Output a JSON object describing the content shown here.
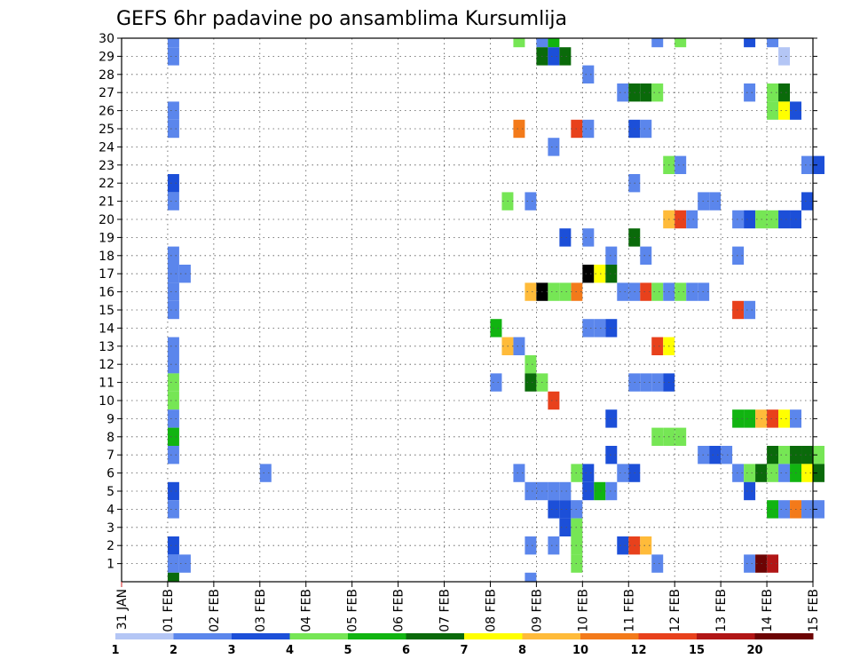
{
  "chart_data": {
    "type": "heatmap",
    "title": "GEFS 6hr padavine po ansamblima Kursumlija",
    "xlabel": "",
    "ylabel": "",
    "x_ticks": [
      "31 JAN",
      "01 FEB",
      "02 FEB",
      "03 FEB",
      "04 FEB",
      "05 FEB",
      "06 FEB",
      "07 FEB",
      "08 FEB",
      "09 FEB",
      "10 FEB",
      "11 FEB",
      "12 FEB",
      "13 FEB",
      "14 FEB",
      "15 FEB"
    ],
    "x_range_days": [
      0,
      15
    ],
    "x_step_days": 0.25,
    "y_range": [
      0,
      30
    ],
    "y_ticks": [
      1,
      2,
      3,
      4,
      5,
      6,
      7,
      8,
      9,
      10,
      11,
      12,
      13,
      14,
      15,
      16,
      17,
      18,
      19,
      20,
      21,
      22,
      23,
      24,
      25,
      26,
      27,
      28,
      29,
      30
    ],
    "grid": "dotted",
    "colorbar": {
      "tick_labels": [
        "1",
        "2",
        "3",
        "4",
        "5",
        "6",
        "7",
        "8",
        "10",
        "12",
        "15",
        "20"
      ],
      "colors": [
        "#b4c6f5",
        "#5b86ec",
        "#1c4fd8",
        "#76e655",
        "#11b411",
        "#0a6a0a",
        "#ffff00",
        "#ffbb3a",
        "#f37a1a",
        "#e8411c",
        "#b11616",
        "#6d0404"
      ]
    },
    "cells": [
      [
        1,
        30,
        1
      ],
      [
        1,
        29,
        1
      ],
      [
        1,
        26,
        1
      ],
      [
        1,
        25,
        1
      ],
      [
        1,
        22,
        2
      ],
      [
        1,
        21,
        1
      ],
      [
        1,
        18,
        1
      ],
      [
        1,
        17,
        1
      ],
      [
        1.25,
        17,
        1
      ],
      [
        1,
        16,
        1
      ],
      [
        1,
        15,
        1
      ],
      [
        1,
        13,
        1
      ],
      [
        1,
        12,
        1
      ],
      [
        1,
        11,
        3
      ],
      [
        1,
        10,
        3
      ],
      [
        1,
        9,
        1
      ],
      [
        1,
        8,
        4
      ],
      [
        1,
        7,
        1
      ],
      [
        1,
        5,
        2
      ],
      [
        1,
        4,
        1
      ],
      [
        1,
        2,
        2
      ],
      [
        1,
        1,
        1
      ],
      [
        1.25,
        1,
        1
      ],
      [
        1,
        0,
        5
      ],
      [
        3,
        6,
        1
      ],
      [
        8.5,
        30,
        3
      ],
      [
        9,
        30,
        1
      ],
      [
        9.25,
        30,
        4
      ],
      [
        9,
        29,
        5
      ],
      [
        9.25,
        29,
        2
      ],
      [
        9.5,
        29,
        5
      ],
      [
        10,
        28,
        1
      ],
      [
        8.5,
        25,
        8
      ],
      [
        9.75,
        25,
        9
      ],
      [
        10,
        25,
        1
      ],
      [
        9.25,
        24,
        1
      ],
      [
        8.25,
        21,
        3
      ],
      [
        8.75,
        21,
        1
      ],
      [
        9.5,
        19,
        2
      ],
      [
        10,
        19,
        1
      ],
      [
        9.75,
        16,
        8
      ],
      [
        8.75,
        16,
        7
      ],
      [
        9,
        16,
        12
      ],
      [
        9.25,
        16,
        3
      ],
      [
        9.5,
        16,
        3
      ],
      [
        10,
        17,
        12
      ],
      [
        10.25,
        17,
        6
      ],
      [
        10.5,
        17,
        5
      ],
      [
        8,
        14,
        4
      ],
      [
        8.25,
        13,
        7
      ],
      [
        8.5,
        13,
        1
      ],
      [
        8.75,
        12,
        3
      ],
      [
        8,
        11,
        1
      ],
      [
        8.75,
        11,
        5
      ],
      [
        9,
        11,
        3
      ],
      [
        9.25,
        10,
        9
      ],
      [
        8.5,
        6,
        1
      ],
      [
        8.75,
        5,
        1
      ],
      [
        9,
        5,
        1
      ],
      [
        9.25,
        5,
        1
      ],
      [
        9.5,
        5,
        1
      ],
      [
        9.25,
        4,
        2
      ],
      [
        9.5,
        4,
        2
      ],
      [
        9.75,
        4,
        1
      ],
      [
        9.5,
        3,
        2
      ],
      [
        9.75,
        3,
        3
      ],
      [
        8.75,
        2,
        1
      ],
      [
        9.25,
        2,
        1
      ],
      [
        9.75,
        2,
        3
      ],
      [
        9.75,
        1,
        3
      ],
      [
        8.75,
        0,
        1
      ],
      [
        9.75,
        6,
        3
      ],
      [
        10,
        6,
        2
      ],
      [
        10,
        5,
        2
      ],
      [
        10.25,
        5,
        4
      ],
      [
        10.5,
        5,
        1
      ],
      [
        10.75,
        27,
        1
      ],
      [
        11,
        27,
        5
      ],
      [
        11.25,
        27,
        5
      ],
      [
        11.5,
        27,
        3
      ],
      [
        11,
        25,
        2
      ],
      [
        11.25,
        25,
        1
      ],
      [
        11,
        22,
        1
      ],
      [
        11,
        19,
        5
      ],
      [
        10.5,
        18,
        1
      ],
      [
        11.25,
        18,
        1
      ],
      [
        10.75,
        16,
        1
      ],
      [
        11,
        16,
        1
      ],
      [
        11.25,
        16,
        9
      ],
      [
        11.5,
        16,
        3
      ],
      [
        11.75,
        16,
        1
      ],
      [
        12,
        16,
        3
      ],
      [
        12.25,
        16,
        1
      ],
      [
        12.5,
        16,
        1
      ],
      [
        10,
        14,
        1
      ],
      [
        10.25,
        14,
        1
      ],
      [
        10.5,
        14,
        2
      ],
      [
        11.5,
        13,
        9
      ],
      [
        11.75,
        13,
        6
      ],
      [
        11,
        11,
        1
      ],
      [
        11.25,
        11,
        1
      ],
      [
        11.5,
        11,
        1
      ],
      [
        11.75,
        11,
        2
      ],
      [
        10.5,
        9,
        2
      ],
      [
        11.5,
        8,
        3
      ],
      [
        11.75,
        8,
        3
      ],
      [
        12,
        8,
        3
      ],
      [
        10.5,
        7,
        2
      ],
      [
        10.75,
        6,
        1
      ],
      [
        11,
        6,
        2
      ],
      [
        10.75,
        2,
        2
      ],
      [
        11,
        2,
        9
      ],
      [
        11.25,
        2,
        7
      ],
      [
        11.5,
        1,
        1
      ],
      [
        11.5,
        30,
        1
      ],
      [
        12,
        30,
        3
      ],
      [
        11.75,
        23,
        3
      ],
      [
        12,
        23,
        1
      ],
      [
        12.5,
        21,
        1
      ],
      [
        12.75,
        21,
        1
      ],
      [
        11.75,
        20,
        7
      ],
      [
        12,
        20,
        9
      ],
      [
        12.25,
        20,
        1
      ],
      [
        12.5,
        7,
        1
      ],
      [
        12.75,
        7,
        2
      ],
      [
        13,
        7,
        1
      ],
      [
        13.5,
        30,
        2
      ],
      [
        14,
        30,
        1
      ],
      [
        14.25,
        29,
        0
      ],
      [
        13.5,
        27,
        1
      ],
      [
        14,
        27,
        3
      ],
      [
        14.25,
        27,
        5
      ],
      [
        14,
        26,
        3
      ],
      [
        14.25,
        26,
        6
      ],
      [
        14.5,
        26,
        2
      ],
      [
        14.75,
        23,
        1
      ],
      [
        15,
        23,
        2
      ],
      [
        14.75,
        21,
        2
      ],
      [
        13.25,
        20,
        1
      ],
      [
        13.5,
        20,
        2
      ],
      [
        13.75,
        20,
        3
      ],
      [
        14,
        20,
        3
      ],
      [
        14.25,
        20,
        2
      ],
      [
        14.5,
        20,
        2
      ],
      [
        13.25,
        18,
        1
      ],
      [
        13.25,
        15,
        9
      ],
      [
        13.5,
        15,
        1
      ],
      [
        13.25,
        9,
        4
      ],
      [
        13.5,
        9,
        4
      ],
      [
        13.75,
        9,
        7
      ],
      [
        14,
        9,
        9
      ],
      [
        14.25,
        9,
        6
      ],
      [
        14.5,
        9,
        1
      ],
      [
        14,
        7,
        5
      ],
      [
        14.25,
        7,
        3
      ],
      [
        14.5,
        7,
        5
      ],
      [
        14.75,
        7,
        5
      ],
      [
        15,
        7,
        3
      ],
      [
        13.25,
        6,
        1
      ],
      [
        13.5,
        6,
        3
      ],
      [
        13.75,
        6,
        5
      ],
      [
        14,
        6,
        3
      ],
      [
        14.25,
        6,
        1
      ],
      [
        14.5,
        6,
        4
      ],
      [
        14.75,
        6,
        6
      ],
      [
        15,
        6,
        5
      ],
      [
        13.5,
        5,
        2
      ],
      [
        14,
        4,
        4
      ],
      [
        14.25,
        4,
        1
      ],
      [
        14.5,
        4,
        8
      ],
      [
        14.75,
        4,
        1
      ],
      [
        15,
        4,
        1
      ],
      [
        13.5,
        1,
        1
      ],
      [
        13.75,
        1,
        11
      ],
      [
        14,
        1,
        10
      ]
    ]
  }
}
